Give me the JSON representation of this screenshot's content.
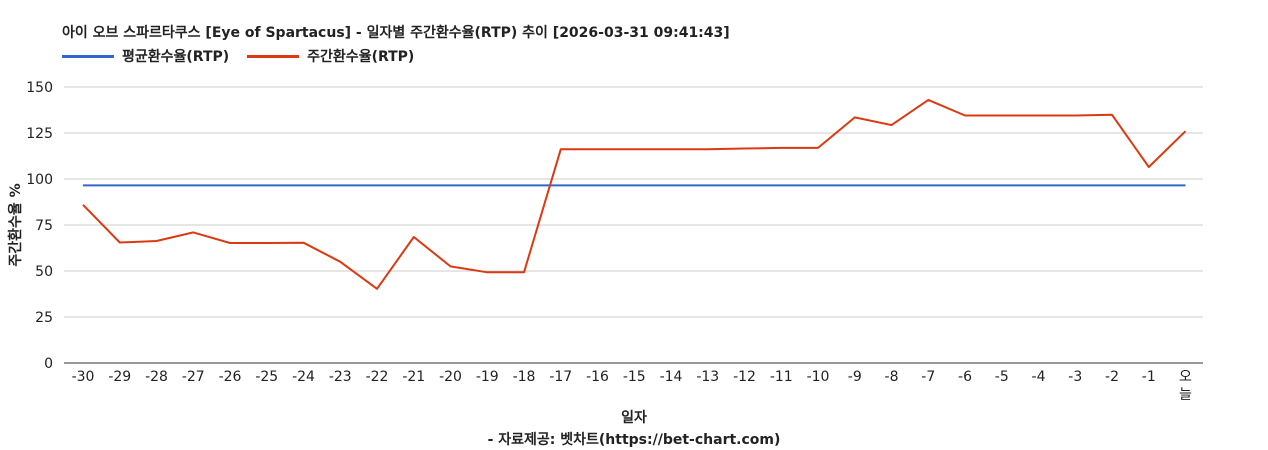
{
  "title": "아이 오브 스파르타쿠스 [Eye of Spartacus] - 일자별 주간환수율(RTP) 추이 [2026-03-31 09:41:43]",
  "colors": {
    "avg": "#3366cc",
    "weekly": "#dc3912",
    "grid": "#cccccc",
    "axis": "#333333"
  },
  "chart_data": {
    "type": "line",
    "title": "아이 오브 스파르타쿠스 [Eye of Spartacus] - 일자별 주간환수율(RTP) 추이 [2026-03-31 09:41:43]",
    "xlabel": "일자",
    "ylabel": "주간환수율 %",
    "ylim": [
      0,
      150
    ],
    "yticks": [
      "0",
      "25",
      "50",
      "75",
      "100",
      "125",
      "150"
    ],
    "grid": true,
    "legend_position": "top-left",
    "categories": [
      "-30",
      "-29",
      "-28",
      "-27",
      "-26",
      "-25",
      "-24",
      "-23",
      "-22",
      "-21",
      "-20",
      "-19",
      "-18",
      "-17",
      "-16",
      "-15",
      "-14",
      "-13",
      "-12",
      "-11",
      "-10",
      "-9",
      "-8",
      "-7",
      "-6",
      "-5",
      "-4",
      "-3",
      "-2",
      "-1",
      "오늘"
    ],
    "series": [
      {
        "name": "평균환수율(RTP)",
        "values": [
          96.5,
          96.5,
          96.5,
          96.5,
          96.5,
          96.5,
          96.5,
          96.5,
          96.5,
          96.5,
          96.5,
          96.5,
          96.5,
          96.5,
          96.5,
          96.5,
          96.5,
          96.5,
          96.5,
          96.5,
          96.5,
          96.5,
          96.5,
          96.5,
          96.5,
          96.5,
          96.5,
          96.5,
          96.5,
          96.5,
          96.5
        ]
      },
      {
        "name": "주간환수율(RTP)",
        "values": [
          86,
          65.5,
          66.3,
          71,
          65.2,
          65.2,
          65.4,
          55,
          40.3,
          68.5,
          52.5,
          49.3,
          49.3,
          116.2,
          116.2,
          116.2,
          116.2,
          116.2,
          116.6,
          116.9,
          116.9,
          133.5,
          129.3,
          143,
          134.5,
          134.5,
          134.5,
          134.5,
          134.9,
          106.5,
          126
        ]
      }
    ]
  },
  "footer": {
    "xlabel": "일자",
    "source": "- 자료제공: 벳차트(https://bet-chart.com)"
  }
}
